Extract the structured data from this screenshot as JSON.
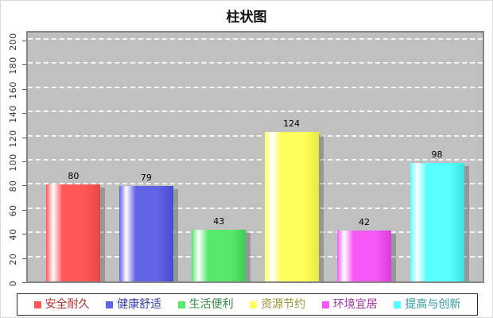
{
  "title": "柱状图",
  "chart_data": {
    "type": "bar",
    "title": "柱状图",
    "categories": [
      "安全耐久",
      "健康舒适",
      "生活便利",
      "资源节约",
      "环境宜居",
      "提高与创新"
    ],
    "values": [
      80,
      79,
      43,
      124,
      42,
      98
    ],
    "ylim": [
      0,
      200
    ],
    "yticks": [
      0,
      20,
      40,
      60,
      80,
      100,
      120,
      140,
      160,
      180,
      200
    ],
    "xlabel": "",
    "ylabel": "",
    "grid": "horizontal-dashed-white",
    "legend_position": "bottom",
    "plot_background": "#c0c0c0",
    "series": [
      {
        "name": "安全耐久",
        "value": 80,
        "color": "#ff5757",
        "color_dark": "#e64545",
        "label_color": "#b03030"
      },
      {
        "name": "健康舒适",
        "value": 79,
        "color": "#6363e8",
        "color_dark": "#4a4acc",
        "label_color": "#3939a8"
      },
      {
        "name": "生活便利",
        "value": 43,
        "color": "#58e96b",
        "color_dark": "#3dcc52",
        "label_color": "#338844"
      },
      {
        "name": "资源节约",
        "value": 124,
        "color": "#ffff5c",
        "color_dark": "#e8e83e",
        "label_color": "#94942e"
      },
      {
        "name": "环境宜居",
        "value": 42,
        "color": "#f558f5",
        "color_dark": "#d93bd9",
        "label_color": "#a035a0"
      },
      {
        "name": "提高与创新",
        "value": 98,
        "color": "#58ffff",
        "color_dark": "#3be3e3",
        "label_color": "#2e9a9a"
      }
    ]
  }
}
